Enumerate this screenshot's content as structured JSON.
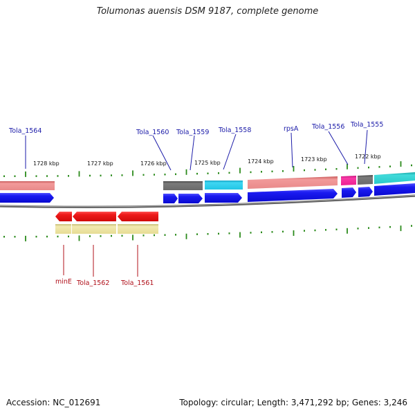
{
  "header": {
    "title": "Tolumonas auensis DSM 9187, complete genome"
  },
  "footer": {
    "accession": "Accession: NC_012691",
    "summary": "Topology: circular; Length: 3,471,292 bp; Genes: 3,246"
  },
  "scale_labels": [
    "1728 kbp",
    "1727 kbp",
    "1726 kbp",
    "1725 kbp",
    "1724 kbp",
    "1723 kbp",
    "1722 kbp"
  ],
  "forward_genes": [
    "Tola_1564",
    "Tola_1560",
    "Tola_1559",
    "Tola_1558",
    "rpsA",
    "Tola_1556",
    "Tola_1555"
  ],
  "reverse_genes": [
    "minE",
    "Tola_1562",
    "Tola_1561"
  ],
  "colors": {
    "cds_blue": "#1010e0",
    "cds_red": "#e01010",
    "tick_green": "#2a8a1a",
    "backbone": "#808080",
    "salmon": "#e98a8a",
    "dark_gray": "#6f6f6f",
    "cyan": "#22c6e6",
    "magenta": "#ee1f94",
    "teal": "#2ac9c9",
    "khaki": "#e6dc94",
    "label_blue": "#1a1aa8",
    "label_red": "#b0101a"
  }
}
